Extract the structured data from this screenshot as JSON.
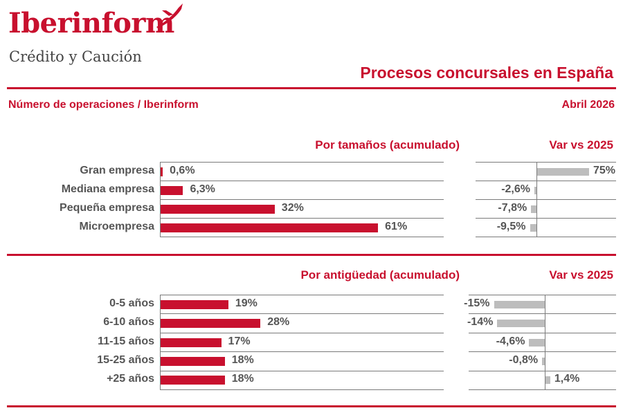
{
  "brand": {
    "name": "Iberinform",
    "tagline": "Crédito y Caución",
    "accent": "#c8102e",
    "neutral": "#bdbdbd"
  },
  "title": "Procesos concursales en España",
  "subtitle": "Número de operaciones / Iberinform",
  "date": "Abril 2026",
  "sections": [
    {
      "head": "Por tamaños (acumulado)",
      "var_head": "Var vs 2025"
    },
    {
      "head": "Por antigüedad (acumulado)",
      "var_head": "Var vs 2025"
    }
  ],
  "chart_data": [
    {
      "type": "bar",
      "orientation": "horizontal",
      "title": "Por tamaños (acumulado)",
      "categories": [
        "Gran empresa",
        "Mediana empresa",
        "Pequeña empresa",
        "Microempresa"
      ],
      "values": [
        0.6,
        6.3,
        32,
        61
      ],
      "labels": [
        "0,6%",
        "6,3%",
        "32%",
        "61%"
      ],
      "unit": "%",
      "color": "#c8102e"
    },
    {
      "type": "bar",
      "orientation": "horizontal",
      "title": "Var vs 2025",
      "categories": [
        "Gran empresa",
        "Mediana empresa",
        "Pequeña empresa",
        "Microempresa"
      ],
      "values": [
        75,
        -2.6,
        -7.8,
        -9.5
      ],
      "labels": [
        "75%",
        "-2,6%",
        "-7,8%",
        "-9,5%"
      ],
      "unit": "%",
      "color": "#bdbdbd"
    },
    {
      "type": "bar",
      "orientation": "horizontal",
      "title": "Por antigüedad (acumulado)",
      "categories": [
        "0-5 años",
        "6-10 años",
        "11-15 años",
        "15-25 años",
        "+25 años"
      ],
      "values": [
        19,
        28,
        17,
        18,
        18
      ],
      "labels": [
        "19%",
        "28%",
        "17%",
        "18%",
        "18%"
      ],
      "unit": "%",
      "color": "#c8102e"
    },
    {
      "type": "bar",
      "orientation": "horizontal",
      "title": "Var vs 2025",
      "categories": [
        "0-5 años",
        "6-10 años",
        "11-15 años",
        "15-25 años",
        "+25 años"
      ],
      "values": [
        -15,
        -14,
        -4.6,
        -0.8,
        1.4
      ],
      "labels": [
        "-15%",
        "-14%",
        "-4,6%",
        "-0,8%",
        "1,4%"
      ],
      "unit": "%",
      "color": "#bdbdbd"
    }
  ]
}
